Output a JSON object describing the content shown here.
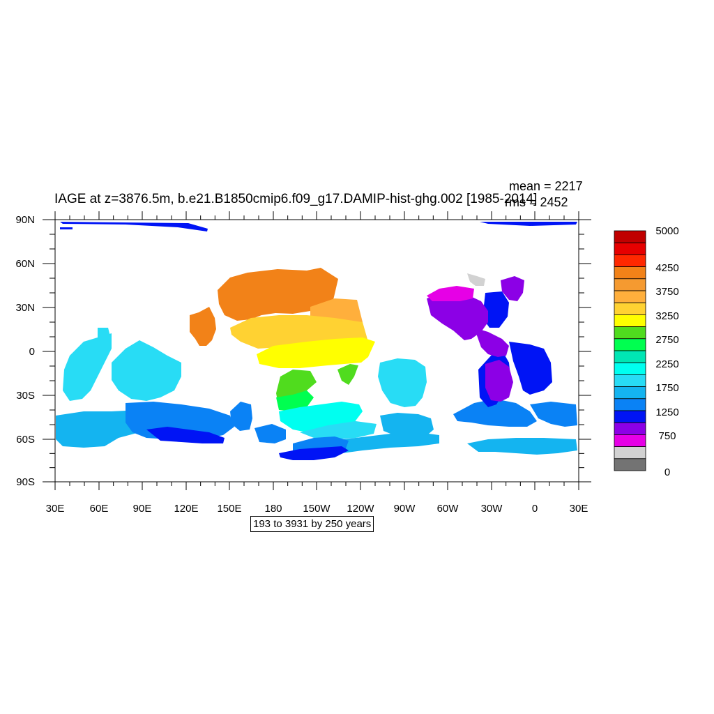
{
  "title": "IAGE at z=3876.5m, b.e21.B1850cmip6.f09_g17.DAMIP-hist-ghg.002 [1985-2014]",
  "stats": {
    "mean": "mean = 2217",
    "rms": "rms = 2452"
  },
  "contour_info": "193 to 3931 by 250 years",
  "axes": {
    "lat_labels": [
      "90N",
      "60N",
      "30N",
      "0",
      "30S",
      "60S",
      "90S"
    ],
    "lon_labels": [
      "30E",
      "60E",
      "90E",
      "120E",
      "150E",
      "180",
      "150W",
      "120W",
      "90W",
      "60W",
      "30W",
      "0",
      "30E"
    ]
  },
  "colorbar": {
    "labels": [
      "5000",
      "4250",
      "3750",
      "3250",
      "2750",
      "2250",
      "1750",
      "1250",
      "750",
      "0"
    ],
    "colors": [
      "#c00000",
      "#e60000",
      "#ff2800",
      "#f28218",
      "#f59a30",
      "#ffaf3c",
      "#ffd232",
      "#ffff00",
      "#50dc1e",
      "#00ff50",
      "#00e6b4",
      "#00fff0",
      "#28dcf5",
      "#14b4f0",
      "#0a82f5",
      "#0014f5",
      "#8c00e6",
      "#e600e6",
      "#d2d2d2",
      "#737373"
    ]
  },
  "palette": {
    "magenta": "#e600e6",
    "purple": "#8c00e6",
    "blue": "#0014f5",
    "medblue": "#0a82f5",
    "skyblue": "#14b4f0",
    "lightblue": "#28dcf5",
    "cyan": "#00fff0",
    "teal": "#00e6b4",
    "green": "#00ff50",
    "ygreen": "#50dc1e",
    "yellow": "#ffff00",
    "gold": "#ffd232",
    "lorange": "#ffaf3c",
    "orange": "#f59a30",
    "dorange": "#f28218",
    "gray": "#d2d2d2"
  }
}
